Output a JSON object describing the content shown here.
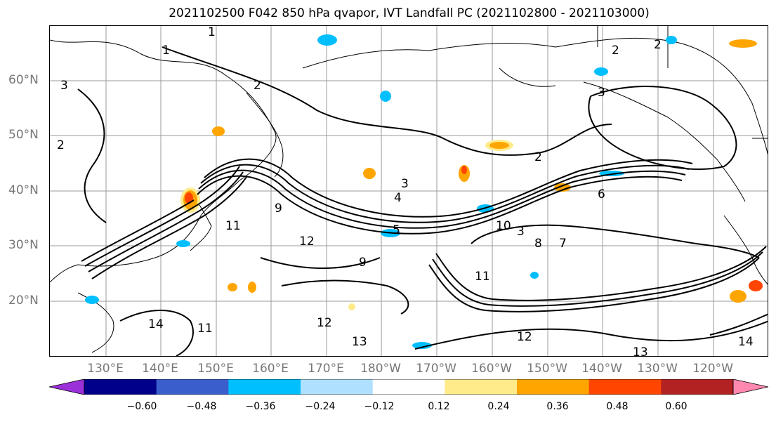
{
  "title": "2021102500 F042 850 hPa qvapor, IVT Landfall PC (2021102800 - 2021103000)",
  "map": {
    "lat_labels": [
      "60°N",
      "50°N",
      "40°N",
      "30°N",
      "20°N"
    ],
    "lon_labels": [
      "130°E",
      "140°E",
      "150°E",
      "160°E",
      "170°E",
      "180°W",
      "170°W",
      "160°W",
      "150°W",
      "140°W",
      "130°W",
      "120°W"
    ],
    "contour_labels": [
      "1",
      "1",
      "2",
      "2",
      "2",
      "2",
      "3",
      "3",
      "3",
      "2",
      "4",
      "6",
      "9",
      "11",
      "12",
      "12",
      "10",
      "9",
      "8",
      "7",
      "11",
      "12",
      "13",
      "14",
      "13",
      "14",
      "11",
      "3",
      "5"
    ]
  },
  "colorbar": {
    "tick_labels": [
      "−0.60",
      "−0.48",
      "−0.36",
      "−0.24",
      "−0.12",
      "0.12",
      "0.24",
      "0.36",
      "0.48",
      "0.60"
    ],
    "colors": [
      "#9b30d9",
      "#00008b",
      "#3a5fcd",
      "#00bfff",
      "#b0e0ff",
      "#ffffff",
      "#ffeb8a",
      "#ffa500",
      "#ff4500",
      "#b22222",
      "#ff88b0"
    ]
  }
}
